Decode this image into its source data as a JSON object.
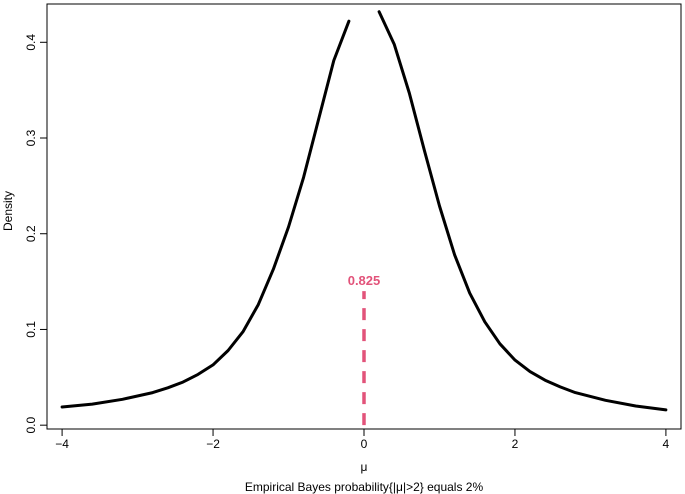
{
  "chart_data": {
    "type": "line",
    "xlabel": "μ",
    "ylabel": "Density",
    "subtitle": "Empirical Bayes probability{|μ|>2} equals 2%",
    "xlim": [
      -4.2,
      4.2
    ],
    "ylim": [
      -0.004,
      0.44
    ],
    "x_ticks": [
      -4,
      -2,
      0,
      2,
      4
    ],
    "x_tick_labels": [
      "−4",
      "−2",
      "0",
      "2",
      "4"
    ],
    "y_ticks": [
      0.0,
      0.1,
      0.2,
      0.3,
      0.4
    ],
    "y_tick_labels": [
      "0.0",
      "0.1",
      "0.2",
      "0.3",
      "0.4"
    ],
    "grid": false,
    "series": [
      {
        "color": "#000000",
        "segments": [
          [
            [
              -4.0,
              0.019
            ],
            [
              -3.6,
              0.022
            ],
            [
              -3.2,
              0.027
            ],
            [
              -2.8,
              0.034
            ],
            [
              -2.6,
              0.039
            ],
            [
              -2.4,
              0.045
            ],
            [
              -2.2,
              0.053
            ],
            [
              -2.0,
              0.063
            ],
            [
              -1.8,
              0.078
            ],
            [
              -1.6,
              0.098
            ],
            [
              -1.4,
              0.126
            ],
            [
              -1.2,
              0.163
            ],
            [
              -1.0,
              0.207
            ],
            [
              -0.8,
              0.259
            ],
            [
              -0.6,
              0.32
            ],
            [
              -0.4,
              0.381
            ],
            [
              -0.2,
              0.422
            ]
          ],
          [
            [
              0.2,
              0.432
            ],
            [
              0.4,
              0.398
            ],
            [
              0.6,
              0.347
            ],
            [
              0.8,
              0.287
            ],
            [
              1.0,
              0.229
            ],
            [
              1.2,
              0.178
            ],
            [
              1.4,
              0.138
            ],
            [
              1.6,
              0.108
            ],
            [
              1.8,
              0.085
            ],
            [
              2.0,
              0.068
            ],
            [
              2.2,
              0.056
            ],
            [
              2.4,
              0.047
            ],
            [
              2.6,
              0.04
            ],
            [
              2.8,
              0.034
            ],
            [
              3.2,
              0.026
            ],
            [
              3.6,
              0.02
            ],
            [
              4.0,
              0.016
            ]
          ]
        ]
      }
    ],
    "point_mass": {
      "x": 0,
      "y": 0.14,
      "label": "0.825",
      "color": "#e2537a"
    }
  }
}
